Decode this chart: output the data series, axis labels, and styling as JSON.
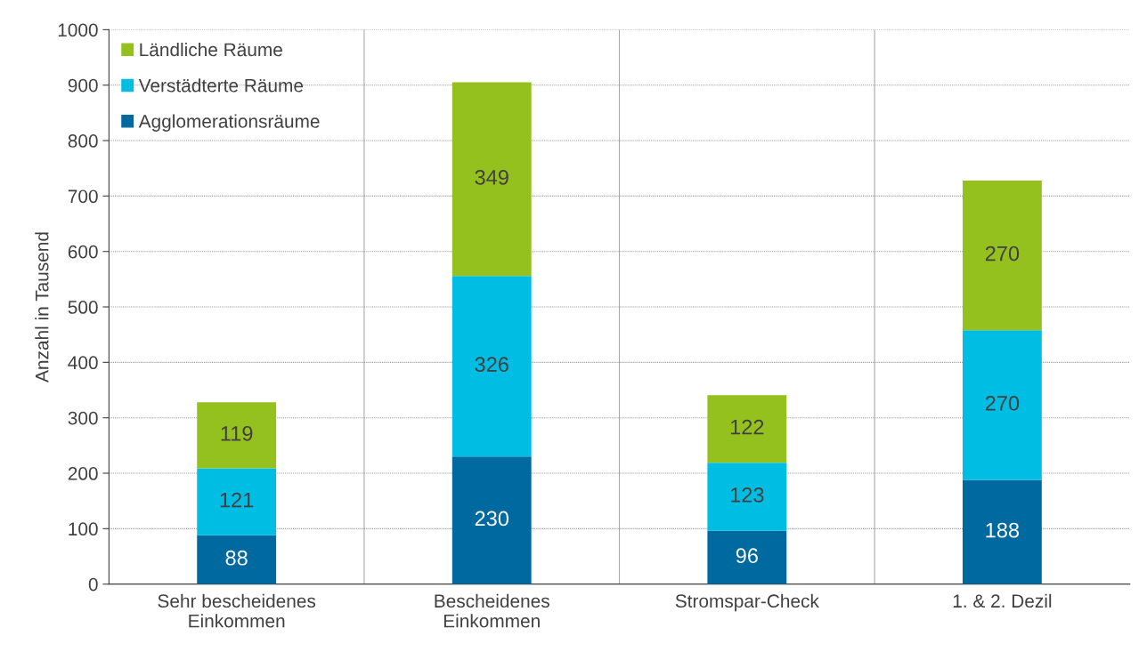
{
  "chart_data": {
    "type": "bar",
    "stacked": true,
    "ylabel": "Anzahl in Tausend",
    "categories": [
      "Sehr bescheidenes\nEinkommen",
      "Bescheidenes\nEinkommen",
      "Stromspar-Check",
      "1. & 2. Dezil"
    ],
    "series": [
      {
        "name": "Agglomerationsräume",
        "color": "#00699f",
        "values": [
          88,
          230,
          96,
          188
        ]
      },
      {
        "name": "Verstädterte Räume",
        "color": "#00bde3",
        "values": [
          121,
          326,
          123,
          270
        ]
      },
      {
        "name": "Ländliche Räume",
        "color": "#95c11f",
        "values": [
          119,
          349,
          122,
          270
        ]
      }
    ],
    "ylim": [
      0,
      1000
    ],
    "yticks": [
      0,
      100,
      200,
      300,
      400,
      500,
      600,
      700,
      800,
      900,
      1000
    ],
    "grid": true,
    "legend": "top left",
    "data_labels": true
  }
}
